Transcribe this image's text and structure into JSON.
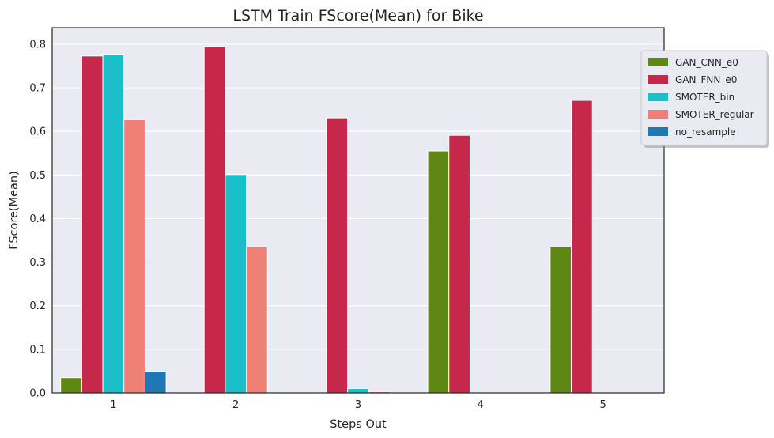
{
  "chart_data": {
    "type": "bar",
    "title": "LSTM Train FScore(Mean) for Bike",
    "xlabel": "Steps Out",
    "ylabel": "FScore(Mean)",
    "categories": [
      "1",
      "2",
      "3",
      "4",
      "5"
    ],
    "ylim": [
      0,
      0.838
    ],
    "yticks": [
      "0.0",
      "0.1",
      "0.2",
      "0.3",
      "0.4",
      "0.5",
      "0.6",
      "0.7",
      "0.8"
    ],
    "grid": true,
    "legend_position": "top-right",
    "series": [
      {
        "name": "GAN_CNN_e0",
        "color": "#5f8714",
        "values": [
          0.035,
          0.0,
          0.0,
          0.555,
          0.335
        ]
      },
      {
        "name": "GAN_FNN_e0",
        "color": "#c5284a",
        "values": [
          0.773,
          0.795,
          0.631,
          0.591,
          0.671
        ]
      },
      {
        "name": "SMOTER_bin",
        "color": "#1bbfca",
        "values": [
          0.777,
          0.501,
          0.01,
          0.0,
          0.0
        ]
      },
      {
        "name": "SMOTER_regular",
        "color": "#ef8075",
        "values": [
          0.627,
          0.335,
          0.003,
          0.0,
          0.0
        ]
      },
      {
        "name": "no_resample",
        "color": "#1f77b4",
        "values": [
          0.05,
          0.0,
          0.0,
          0.0,
          0.0
        ]
      }
    ]
  }
}
